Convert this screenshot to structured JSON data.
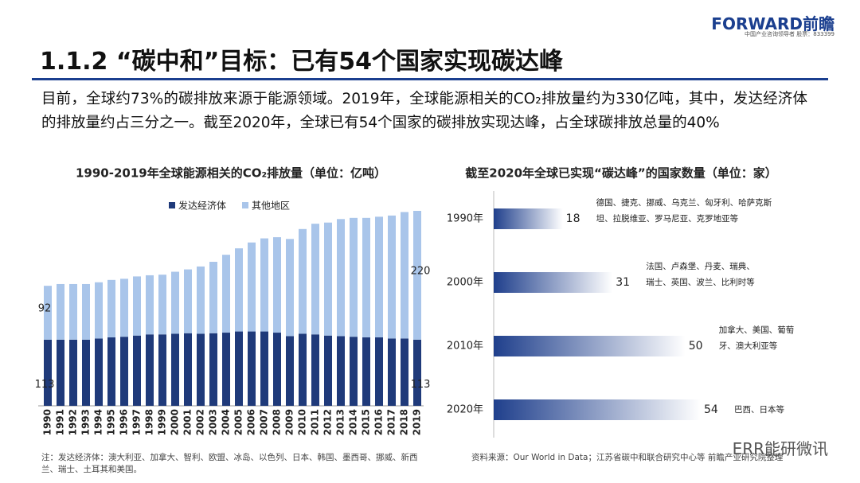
{
  "header": {
    "logo": "FORWARD前瞻",
    "tagline": "中国产业咨询领导者 股票：833399",
    "title": "1.1.2 “碳中和”目标：已有54个国家实现碳达峰"
  },
  "intro": "目前，全球约73%的碳排放来源于能源领域。2019年，全球能源相关的CO₂排放量约为330亿吨，其中，发达经济体的排放量约占三分之一。截至2020年，全球已有54个国家的碳排放实现达峰，占全球碳排放总量的40%",
  "chart_data": [
    {
      "type": "bar",
      "stacked": true,
      "legend": "top",
      "title": "1990-2019年全球能源相关的CO₂排放量（单位：亿吨）",
      "categories": [
        "1990",
        "1991",
        "1992",
        "1993",
        "1994",
        "1995",
        "1996",
        "1997",
        "1998",
        "1999",
        "2000",
        "2001",
        "2002",
        "2003",
        "2004",
        "2005",
        "2006",
        "2007",
        "2008",
        "2009",
        "2010",
        "2011",
        "2012",
        "2013",
        "2014",
        "2015",
        "2016",
        "2017",
        "2018",
        "2019"
      ],
      "series": [
        {
          "name": "发达经济体",
          "color": "#1f3a7a",
          "values": [
            113,
            113,
            113,
            113,
            115,
            117,
            118,
            120,
            122,
            122,
            123,
            124,
            123,
            124,
            125,
            127,
            127,
            127,
            125,
            119,
            123,
            122,
            120,
            119,
            118,
            117,
            117,
            115,
            115,
            113
          ]
        },
        {
          "name": "其他地区",
          "color": "#a9c5ea",
          "values": [
            92,
            95,
            95,
            95,
            96,
            98,
            99,
            101,
            101,
            102,
            106,
            109,
            115,
            122,
            133,
            142,
            152,
            159,
            163,
            166,
            179,
            189,
            193,
            200,
            203,
            204,
            206,
            210,
            216,
            220
          ]
        }
      ]
    },
    {
      "type": "hbar",
      "title": "截至2020年全球已实现“碳达峰”的国家数量（单位：家）",
      "categories": [
        "1990年",
        "2000年",
        "2010年",
        "2020年"
      ],
      "values": [
        18,
        31,
        50,
        54
      ],
      "color": "#1f3f8c",
      "annotations": [
        [
          "德国、捷克、挪威、乌克兰、匈牙利、哈萨克斯",
          "坦、拉脱维亚、罗马尼亚、克罗地亚等"
        ],
        [
          "法国、卢森堡、丹麦、瑞典、",
          "瑞士、英国、波兰、比利时等"
        ],
        [
          "加拿大、美国、葡萄",
          "牙、澳大利亚等"
        ],
        [
          "巴西、日本等"
        ]
      ]
    }
  ],
  "notes": {
    "left": "注：发达经济体：澳大利亚、加拿大、智利、欧盟、冰岛、以色列、日本、韩国、墨西哥、挪威、新西兰、瑞士、土耳其和美国。",
    "right": "资料来源：Our World in Data；江苏省碳中和联合研究中心等 前瞻产业研究院整理"
  },
  "watermark": "ERR能研微讯"
}
